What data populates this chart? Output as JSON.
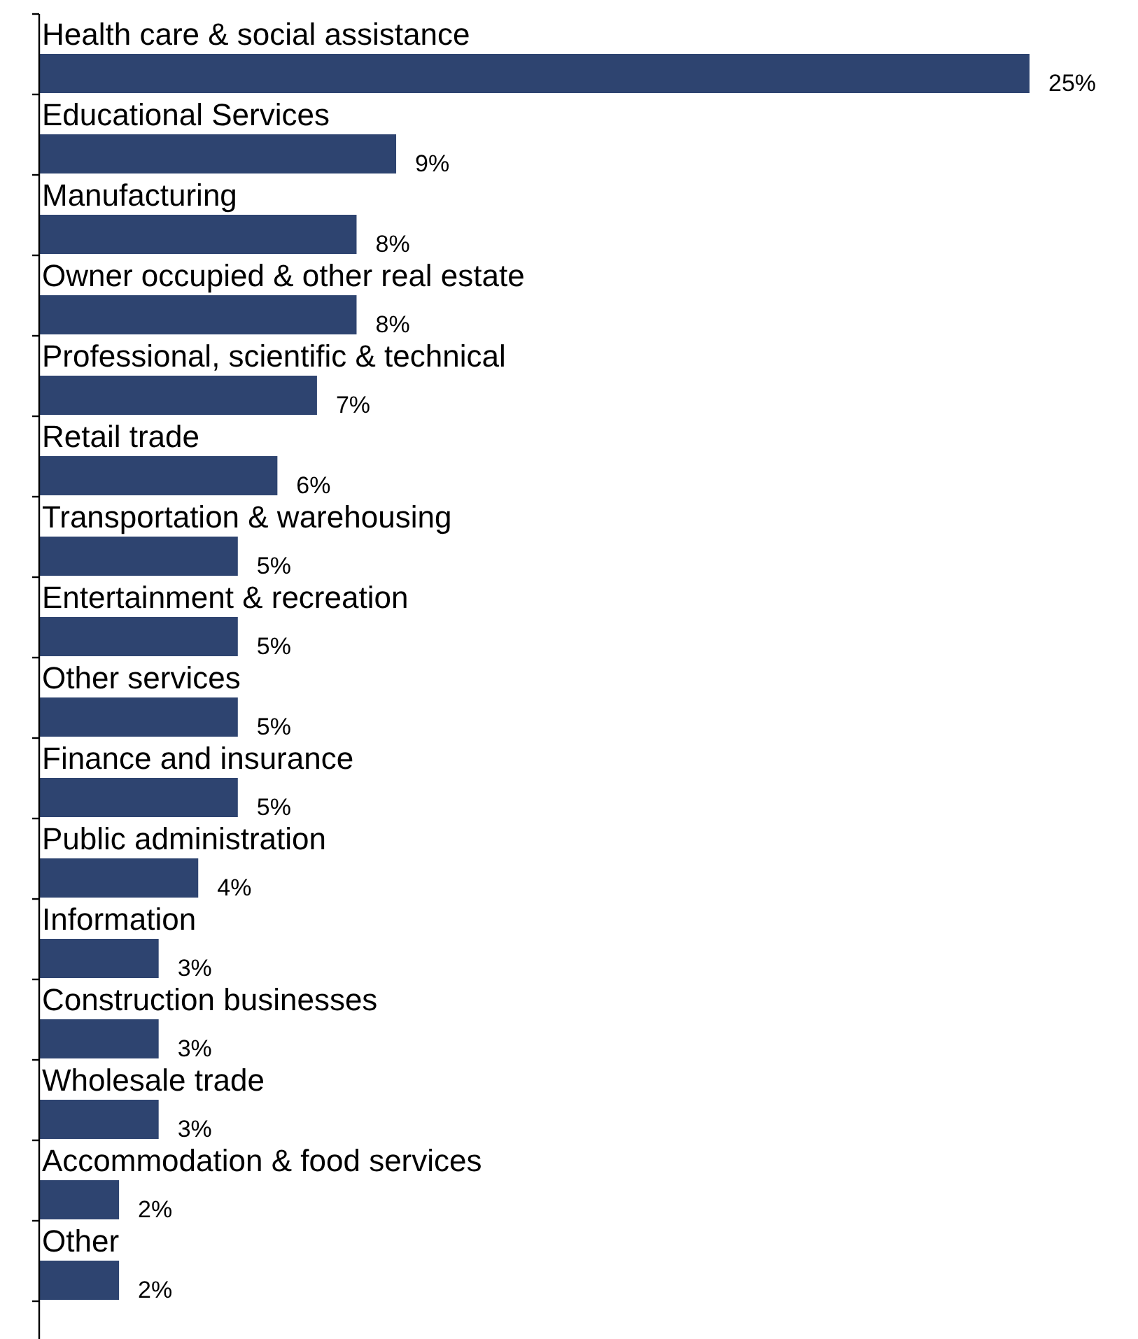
{
  "chart_data": {
    "type": "bar",
    "orientation": "horizontal",
    "categories": [
      "Health care & social assistance",
      "Educational Services",
      "Manufacturing",
      "Owner occupied & other real estate",
      "Professional, scientific & technical",
      "Retail trade",
      "Transportation & warehousing",
      "Entertainment & recreation",
      "Other services",
      "Finance and insurance",
      "Public administration",
      "Information",
      "Construction businesses",
      "Wholesale trade",
      "Accommodation & food services",
      "Other"
    ],
    "values": [
      25,
      9,
      8,
      8,
      7,
      6,
      5,
      5,
      5,
      5,
      4,
      3,
      3,
      3,
      2,
      2
    ],
    "value_labels": [
      "25%",
      "9%",
      "8%",
      "8%",
      "7%",
      "6%",
      "5%",
      "5%",
      "5%",
      "5%",
      "4%",
      "3%",
      "3%",
      "3%",
      "2%",
      "2%"
    ],
    "color": "#2e4470"
  }
}
